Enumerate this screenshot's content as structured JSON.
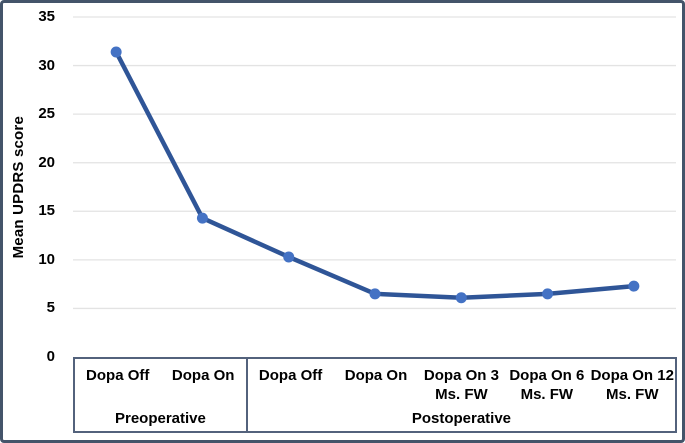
{
  "chart_data": {
    "type": "line",
    "title": "",
    "xlabel": "",
    "ylabel": "Mean UPDRS score",
    "ylim": [
      0,
      35
    ],
    "ytick_step": 5,
    "yticks": [
      0,
      5,
      10,
      15,
      20,
      25,
      30,
      35
    ],
    "grid": true,
    "legend": false,
    "categories": [
      "Dopa Off",
      "Dopa On",
      "Dopa Off",
      "Dopa On",
      "Dopa On 3 Ms. FW",
      "Dopa On 6 Ms. FW",
      "Dopa On 12 Ms. FW"
    ],
    "category_lines": [
      [
        "Dopa Off"
      ],
      [
        "Dopa On"
      ],
      [
        "Dopa Off"
      ],
      [
        "Dopa On"
      ],
      [
        "Dopa On 3",
        "Ms. FW"
      ],
      [
        "Dopa On 6",
        "Ms. FW"
      ],
      [
        "Dopa On 12",
        "Ms. FW"
      ]
    ],
    "values": [
      31.4,
      14.3,
      10.3,
      6.5,
      6.1,
      6.5,
      7.3
    ],
    "series": [
      {
        "name": "Mean UPDRS score",
        "values": [
          31.4,
          14.3,
          10.3,
          6.5,
          6.1,
          6.5,
          7.3
        ]
      }
    ],
    "groups": [
      {
        "label": "Preoperative",
        "span": 2
      },
      {
        "label": "Postoperative",
        "span": 5
      }
    ],
    "colors": {
      "line": "#2F5597",
      "marker": "#4472C4",
      "gridline": "#E3E3E3",
      "frame": "#44546A",
      "axis_box": "#53627C",
      "text": "#000000"
    }
  }
}
